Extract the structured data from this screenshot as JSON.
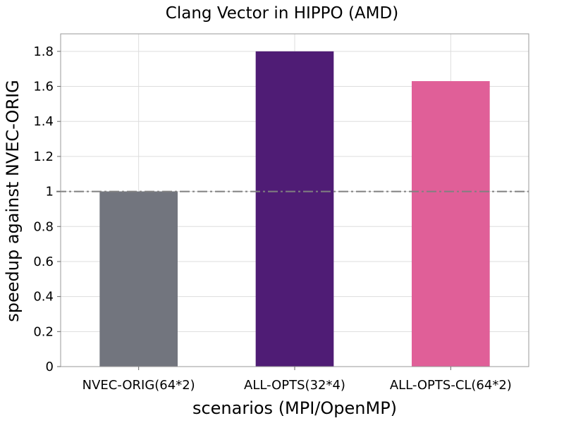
{
  "chart_data": {
    "type": "bar",
    "title": "Clang Vector in HIPPO (AMD)",
    "xlabel": "scenarios (MPI/OpenMP)",
    "ylabel": "speedup against NVEC-ORIG",
    "categories": [
      "NVEC-ORIG(64*2)",
      "ALL-OPTS(32*4)",
      "ALL-OPTS-CL(64*2)"
    ],
    "values": [
      1.0,
      1.8,
      1.63
    ],
    "bar_colors": [
      "#72757e",
      "#4f1c75",
      "#e05f98"
    ],
    "ylim": [
      0,
      1.9
    ],
    "yticks": [
      0,
      0.2,
      0.4,
      0.6,
      0.8,
      1,
      1.2,
      1.4,
      1.6,
      1.8
    ],
    "ytick_labels": [
      "0",
      "0.2",
      "0.4",
      "0.6",
      "0.8",
      "1",
      "1.2",
      "1.4",
      "1.6",
      "1.8"
    ],
    "reference_line": {
      "y": 1,
      "style": "dash-dot",
      "color": "#808080"
    },
    "grid": true,
    "legend": "none"
  }
}
